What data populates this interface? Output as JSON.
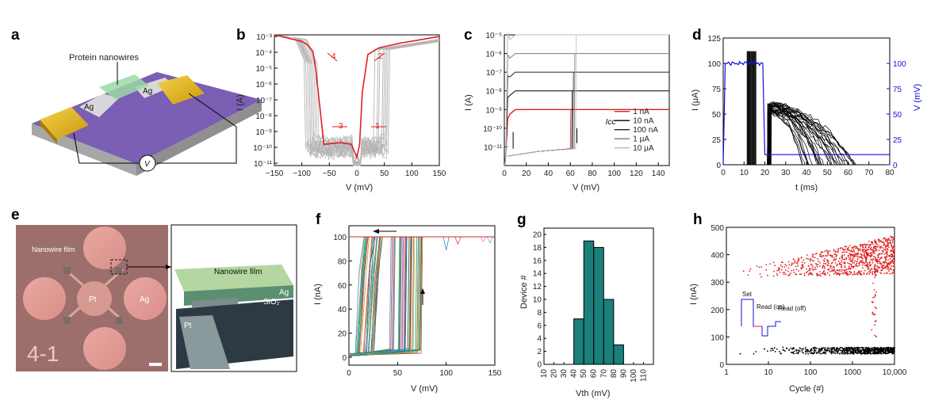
{
  "panels": {
    "a": {
      "label": "a",
      "title": "Protein nanowires",
      "electrode_label": "Ag",
      "voltage_label": "V"
    },
    "b": {
      "label": "b"
    },
    "c": {
      "label": "c"
    },
    "d": {
      "label": "d"
    },
    "e": {
      "label": "e",
      "film_label": "Nanowire film",
      "pt_label": "Pt",
      "ag_label": "Ag",
      "device_label": "4-1",
      "inset_film_label": "Nanowire film",
      "inset_ag_label": "Ag",
      "inset_sio2_label": "SiO₂",
      "inset_pt_label": "Pt"
    },
    "f": {
      "label": "f"
    },
    "g": {
      "label": "g"
    },
    "h": {
      "label": "h",
      "set_label": "Set",
      "read_on_label": "Read (on)",
      "read_off_label": "Read (off)"
    }
  },
  "chart_data": [
    {
      "id": "b",
      "type": "line",
      "xlabel": "V (mV)",
      "ylabel": "I (A)",
      "xlim": [
        -150,
        150
      ],
      "ylim_log10": [
        -11,
        -3
      ],
      "xticks": [
        -150,
        -100,
        -50,
        0,
        50,
        100,
        150
      ],
      "yticks": [
        "10⁻³",
        "10⁻⁴",
        "10⁻⁵",
        "10⁻⁶",
        "10⁻⁷",
        "10⁻⁸",
        "10⁻⁹",
        "10⁻¹⁰",
        "10⁻¹¹"
      ],
      "annotations": [
        "1",
        "2",
        "3",
        "4"
      ],
      "colors": {
        "highlight": "#e02020",
        "cycles": "#b5b5b5"
      },
      "series": [
        {
          "x": [
            -150,
            -100,
            -90,
            -80,
            -75,
            -60,
            -30,
            -10,
            0,
            5,
            10,
            20,
            40,
            80,
            150
          ],
          "y": [
            -3.0,
            -3.4,
            -3.6,
            -4.0,
            -5.0,
            -9.7,
            -9.6,
            -9.7,
            -10.5,
            -9.7,
            -6.5,
            -4.2,
            -3.8,
            -3.5,
            -3.1
          ]
        }
      ]
    },
    {
      "id": "c",
      "type": "line",
      "xlabel": "V (mV)",
      "ylabel": "I (A)",
      "xlim": [
        0,
        150
      ],
      "ylim_log10": [
        -12,
        -5
      ],
      "xticks": [
        0,
        20,
        40,
        60,
        80,
        100,
        120,
        140
      ],
      "yticks": [
        "10⁻⁵",
        "10⁻⁶",
        "10⁻⁷",
        "10⁻⁸",
        "10⁻⁹",
        "10⁻¹⁰",
        "10⁻¹¹"
      ],
      "legend_title": "Icc",
      "legend_position": "bottom-right",
      "series": [
        {
          "name": "1 nA",
          "color": "#e02020",
          "compliance_log10": -9
        },
        {
          "name": "10 nA",
          "color": "#000000",
          "compliance_log10": -8
        },
        {
          "name": "100 nA",
          "color": "#222222",
          "compliance_log10": -7
        },
        {
          "name": "1 μA",
          "color": "#777777",
          "compliance_log10": -6
        },
        {
          "name": "10 μA",
          "color": "#b8b8b8",
          "compliance_log10": -5
        }
      ]
    },
    {
      "id": "d",
      "type": "line",
      "xlabel": "t (ms)",
      "ylabel": "I (μA)",
      "y2label": "V (mV)",
      "xlim": [
        0,
        80
      ],
      "ylim": [
        0,
        125
      ],
      "y2lim": [
        0,
        125
      ],
      "xticks": [
        0,
        10,
        20,
        30,
        40,
        50,
        60,
        70,
        80
      ],
      "yticks": [
        0,
        25,
        50,
        75,
        100,
        125
      ],
      "y2ticks": [
        0,
        25,
        50,
        75,
        100
      ],
      "colors": {
        "voltage": "#1010e0",
        "current": "#000000"
      },
      "voltage_pulse": {
        "x": [
          0,
          1,
          2,
          19,
          20,
          21,
          80
        ],
        "y": [
          0,
          100,
          100,
          100,
          10,
          10,
          10
        ]
      }
    },
    {
      "id": "f",
      "type": "line",
      "xlabel": "V (mV)",
      "ylabel": "I (nA)",
      "xlim": [
        0,
        150
      ],
      "ylim": [
        0,
        100
      ],
      "xticks": [
        0,
        50,
        100,
        150
      ],
      "yticks": [
        0,
        20,
        40,
        60,
        80,
        100
      ]
    },
    {
      "id": "g",
      "type": "bar",
      "xlabel": "Vth (mV)",
      "ylabel": "Device #",
      "categories": [
        45,
        55,
        65,
        75,
        85
      ],
      "values": [
        7,
        19,
        18,
        10,
        3
      ],
      "bin_edges": [
        40,
        50,
        60,
        70,
        80,
        90
      ],
      "ylim": [
        0,
        20
      ],
      "xlim": [
        10,
        120
      ],
      "xticks": [
        10,
        20,
        30,
        40,
        50,
        60,
        70,
        80,
        90,
        100,
        110
      ],
      "yticks": [
        0,
        2,
        4,
        6,
        8,
        10,
        12,
        14,
        16,
        18,
        20
      ],
      "colors": {
        "bar": "#1b7f7a"
      }
    },
    {
      "id": "h",
      "type": "scatter",
      "xlabel": "Cycle (#)",
      "ylabel": "I (nA)",
      "xlim_log10": [
        0,
        4
      ],
      "ylim": [
        0,
        500
      ],
      "xticks": [
        "1",
        "10",
        "100",
        "1000",
        "10,000"
      ],
      "yticks": [
        0,
        100,
        200,
        300,
        400,
        500
      ],
      "series": [
        {
          "name": "",
          "color": "#e02020",
          "mean_start": 330,
          "mean_end": 400
        },
        {
          "name": "",
          "color": "#000000",
          "mean_start": 50,
          "mean_end": 50
        }
      ]
    }
  ]
}
